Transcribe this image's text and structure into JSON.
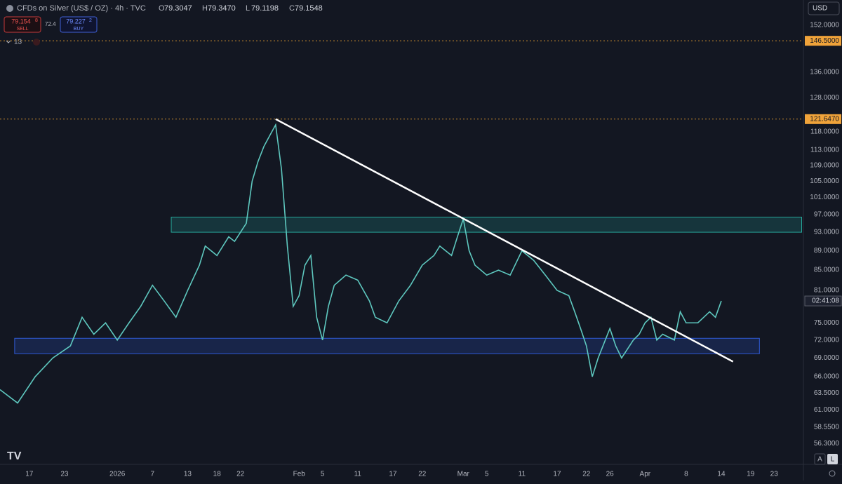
{
  "header": {
    "symbol": "CFDs on Silver (US$ / OZ) · 4h · TVC",
    "ohlc": [
      {
        "label": "O",
        "value": "79.3047"
      },
      {
        "label": "H",
        "value": "79.3470"
      },
      {
        "label": "L",
        "value": "79.1198"
      },
      {
        "label": "C",
        "value": "79.1548"
      }
    ],
    "sell_price": "79.154",
    "sell_sup": "8",
    "sell_label": "SELL",
    "spread": "72.4",
    "buy_price": "79.227",
    "buy_sup": "2",
    "buy_label": "BUY",
    "indicators": "13",
    "currency": "USD",
    "countdown": "02:41:08",
    "btn_a": "A",
    "btn_l": "L"
  },
  "chart_data": {
    "type": "line",
    "log_scale": true,
    "grid": false,
    "color": "#5ec8bf",
    "x": [
      -20,
      -17,
      -14,
      -11,
      -8,
      -6,
      -4,
      -2,
      0,
      2,
      4,
      6,
      8,
      10,
      12,
      14,
      15,
      17,
      19,
      20,
      22,
      23,
      24,
      25,
      26,
      27,
      28,
      29,
      30,
      31,
      32,
      33,
      34,
      35,
      36,
      37,
      39,
      41,
      43,
      44,
      46,
      48,
      50,
      52,
      54,
      55,
      57,
      58,
      59,
      60,
      61,
      63,
      65,
      67,
      69,
      71,
      73,
      75,
      77,
      78,
      79,
      80,
      81,
      82,
      84,
      85,
      86,
      88,
      89,
      90,
      91,
      92,
      93,
      95,
      96,
      97,
      99,
      101,
      102,
      103
    ],
    "series": [
      {
        "name": "CFDs on Silver",
        "values": [
          64,
          62,
          66,
          69,
          71,
          76,
          73,
          75,
          72,
          75,
          78,
          82,
          79,
          76,
          81,
          86,
          90,
          88,
          92,
          91,
          95,
          105,
          110,
          114,
          117,
          120,
          108,
          90,
          78,
          80,
          86,
          88,
          76,
          72,
          78,
          82,
          84,
          83,
          79,
          76,
          75,
          79,
          82,
          86,
          88,
          90,
          88,
          92,
          96,
          89,
          86,
          84,
          85,
          84,
          89,
          87,
          84,
          81,
          80,
          77,
          74,
          71,
          66,
          69,
          74,
          71,
          69,
          72,
          73,
          75,
          76,
          72,
          73,
          72,
          77,
          75,
          75,
          77,
          76,
          79
        ]
      }
    ],
    "xlim": [
      -20,
      117
    ],
    "ylim": [
      53.6,
      161.4
    ],
    "xticks": [
      {
        "value": -15,
        "label": "17"
      },
      {
        "value": -9,
        "label": "23"
      },
      {
        "value": 0,
        "label": "2026"
      },
      {
        "value": 6,
        "label": "7"
      },
      {
        "value": 12,
        "label": "13"
      },
      {
        "value": 17,
        "label": "18"
      },
      {
        "value": 21,
        "label": "22"
      },
      {
        "value": 31,
        "label": "Feb"
      },
      {
        "value": 35,
        "label": "5"
      },
      {
        "value": 41,
        "label": "11"
      },
      {
        "value": 47,
        "label": "17"
      },
      {
        "value": 52,
        "label": "22"
      },
      {
        "value": 59,
        "label": "Mar"
      },
      {
        "value": 63,
        "label": "5"
      },
      {
        "value": 69,
        "label": "11"
      },
      {
        "value": 75,
        "label": "17"
      },
      {
        "value": 80,
        "label": "22"
      },
      {
        "value": 84,
        "label": "26"
      },
      {
        "value": 90,
        "label": "Apr"
      },
      {
        "value": 97,
        "label": "8"
      },
      {
        "value": 103,
        "label": "14"
      },
      {
        "value": 108,
        "label": "19"
      },
      {
        "value": 112,
        "label": "23"
      }
    ],
    "yticks": [
      {
        "value": 152,
        "label": "152.0000"
      },
      {
        "value": 136,
        "label": "136.0000"
      },
      {
        "value": 128,
        "label": "128.0000"
      },
      {
        "value": 118,
        "label": "118.0000"
      },
      {
        "value": 113,
        "label": "113.0000"
      },
      {
        "value": 109,
        "label": "109.0000"
      },
      {
        "value": 105,
        "label": "105.0000"
      },
      {
        "value": 101,
        "label": "101.0000"
      },
      {
        "value": 97,
        "label": "97.0000"
      },
      {
        "value": 93,
        "label": "93.0000"
      },
      {
        "value": 89,
        "label": "89.0000"
      },
      {
        "value": 85,
        "label": "85.0000"
      },
      {
        "value": 81,
        "label": "81.0000"
      },
      {
        "value": 75,
        "label": "75.0000"
      },
      {
        "value": 72,
        "label": "72.0000"
      },
      {
        "value": 69,
        "label": "69.0000"
      },
      {
        "value": 66,
        "label": "66.0000"
      },
      {
        "value": 63.5,
        "label": "63.5000"
      },
      {
        "value": 61,
        "label": "61.0000"
      },
      {
        "value": 58.55,
        "label": "58.5500"
      },
      {
        "value": 56.3,
        "label": "56.3000"
      }
    ],
    "price_lines": [
      {
        "value": 146.5,
        "label": "146.5000"
      },
      {
        "value": 121.647,
        "label": "121.6470"
      }
    ],
    "zones": [
      {
        "x": [
          9.2,
          116.7
        ],
        "y": [
          93,
          96.4
        ],
        "color": "#26a69a"
      },
      {
        "x": [
          -17.5,
          109.5
        ],
        "y": [
          69.7,
          72.3
        ],
        "color": "#2f5bd6"
      }
    ],
    "trendline": {
      "x": [
        27,
        105
      ],
      "y": [
        121.647,
        68.4
      ]
    }
  }
}
